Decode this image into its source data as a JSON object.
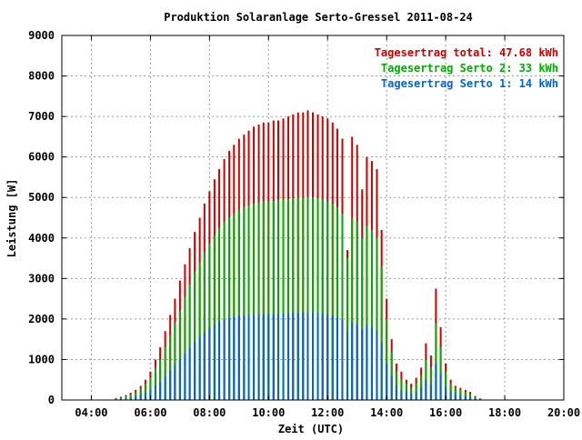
{
  "chart_data": {
    "type": "bar",
    "title": "Produktion Solaranlage Serto-Gressel 2011-08-24",
    "xlabel": "Zeit (UTC)",
    "ylabel": "Leistung [W]",
    "xlim": [
      3.0,
      20.0
    ],
    "ylim": [
      0,
      9000
    ],
    "grid": true,
    "legend_placement": "top-right",
    "x_ticks": [
      "04:00",
      "06:00",
      "08:00",
      "10:00",
      "12:00",
      "14:00",
      "16:00",
      "18:00",
      "20:00"
    ],
    "x_tick_values": [
      4,
      6,
      8,
      10,
      12,
      14,
      16,
      18,
      20
    ],
    "y_ticks": [
      "0",
      "1000",
      "2000",
      "3000",
      "4000",
      "5000",
      "6000",
      "7000",
      "8000",
      "9000"
    ],
    "y_tick_values": [
      0,
      1000,
      2000,
      3000,
      4000,
      5000,
      6000,
      7000,
      8000,
      9000
    ],
    "legend": [
      {
        "label": "Tagesertrag total: 47.68 kWh",
        "color": "#cc0000"
      },
      {
        "label": "Tagesertrag Serto 2: 33 kWh",
        "color": "#00aa00"
      },
      {
        "label": "Tagesertrag Serto 1: 14 kWh",
        "color": "#0066cc"
      }
    ],
    "x": [
      4.83,
      5.0,
      5.17,
      5.33,
      5.5,
      5.67,
      5.83,
      6.0,
      6.17,
      6.33,
      6.5,
      6.67,
      6.83,
      7.0,
      7.17,
      7.33,
      7.5,
      7.67,
      7.83,
      8.0,
      8.17,
      8.33,
      8.5,
      8.67,
      8.83,
      9.0,
      9.17,
      9.33,
      9.5,
      9.67,
      9.83,
      10.0,
      10.17,
      10.33,
      10.5,
      10.67,
      10.83,
      11.0,
      11.17,
      11.33,
      11.5,
      11.67,
      11.83,
      12.0,
      12.17,
      12.33,
      12.5,
      12.67,
      12.83,
      13.0,
      13.17,
      13.33,
      13.5,
      13.67,
      13.83,
      14.0,
      14.17,
      14.33,
      14.5,
      14.67,
      14.83,
      15.0,
      15.17,
      15.33,
      15.5,
      15.67,
      15.83,
      16.0,
      16.17,
      16.33,
      16.5,
      16.67,
      16.83,
      17.0,
      17.17,
      17.33
    ],
    "series": [
      {
        "name": "Tagesertrag total: 47.68 kWh",
        "color": "#cc0000",
        "values": [
          50,
          80,
          120,
          180,
          250,
          350,
          500,
          700,
          1000,
          1300,
          1700,
          2100,
          2500,
          2950,
          3350,
          3750,
          4150,
          4500,
          4850,
          5150,
          5450,
          5700,
          5950,
          6150,
          6300,
          6450,
          6550,
          6650,
          6750,
          6800,
          6850,
          6850,
          6900,
          6900,
          6950,
          7000,
          7050,
          7100,
          7100,
          7150,
          7100,
          7050,
          7000,
          6950,
          6850,
          6700,
          6450,
          3700,
          6500,
          6300,
          5200,
          6000,
          5900,
          5700,
          4200,
          2500,
          1500,
          900,
          700,
          500,
          400,
          550,
          800,
          1400,
          1100,
          2750,
          1800,
          900,
          500,
          350,
          300,
          250,
          200,
          100,
          40,
          10
        ]
      },
      {
        "name": "Tagesertrag Serto 2: 33 kWh",
        "color": "#00aa00",
        "values": [
          40,
          60,
          90,
          140,
          200,
          280,
          400,
          550,
          780,
          1000,
          1300,
          1600,
          1900,
          2200,
          2550,
          2850,
          3150,
          3400,
          3650,
          3850,
          4050,
          4250,
          4400,
          4500,
          4600,
          4700,
          4750,
          4800,
          4850,
          4880,
          4900,
          4900,
          4920,
          4940,
          4950,
          4960,
          4980,
          5000,
          5000,
          5020,
          5000,
          4980,
          4950,
          4900,
          4850,
          4750,
          4600,
          3500,
          4500,
          4400,
          4000,
          4300,
          4200,
          4000,
          3300,
          2000,
          1200,
          700,
          500,
          400,
          300,
          400,
          600,
          1000,
          800,
          1900,
          1300,
          700,
          400,
          300,
          250,
          200,
          150,
          80,
          30,
          8
        ]
      },
      {
        "name": "Tagesertrag Serto 1: 14 kWh",
        "color": "#0066cc",
        "values": [
          20,
          30,
          40,
          60,
          90,
          120,
          170,
          250,
          350,
          450,
          580,
          720,
          860,
          1000,
          1150,
          1300,
          1440,
          1560,
          1680,
          1780,
          1870,
          1940,
          1990,
          2030,
          2060,
          2080,
          2090,
          2100,
          2100,
          2110,
          2110,
          2120,
          2120,
          2130,
          2130,
          2140,
          2150,
          2160,
          2160,
          2170,
          2160,
          2150,
          2130,
          2100,
          2080,
          2030,
          1980,
          1700,
          1920,
          1880,
          1750,
          1850,
          1800,
          1700,
          1400,
          900,
          600,
          350,
          250,
          200,
          150,
          200,
          300,
          500,
          400,
          900,
          650,
          350,
          200,
          150,
          120,
          100,
          70,
          40,
          15,
          4
        ]
      }
    ]
  }
}
